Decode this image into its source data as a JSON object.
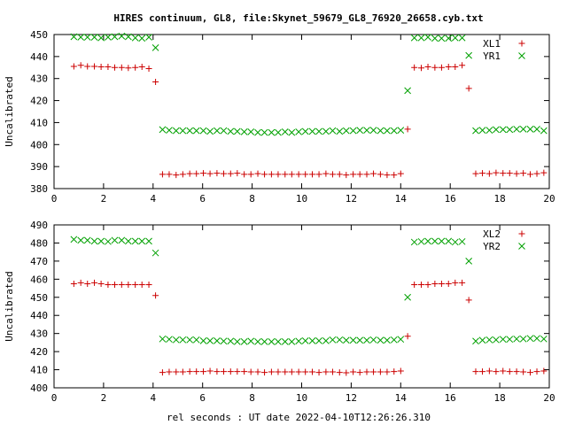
{
  "title": "HIRES continuum, GL8, file:Skynet_59679_GL8_76920_26658.cyb.txt",
  "xlabel": "rel seconds : UT date 2022-04-10T12:26:26.310",
  "colors": {
    "series_a": "#cc0000",
    "series_b": "#00a000",
    "frame": "#000000"
  },
  "chart_data": [
    {
      "type": "scatter",
      "ylabel": "Uncalibrated",
      "xlim": [
        0,
        20
      ],
      "ylim": [
        380,
        450
      ],
      "xticks": [
        0,
        2,
        4,
        6,
        8,
        10,
        12,
        14,
        16,
        18,
        20
      ],
      "yticks": [
        380,
        390,
        400,
        410,
        420,
        430,
        440,
        450
      ],
      "legend_position": "top-right",
      "grid": false,
      "series": [
        {
          "name": "XL1",
          "marker": "plus",
          "x": [
            0.8,
            1.08,
            1.35,
            1.63,
            1.9,
            2.18,
            2.45,
            2.73,
            3.0,
            3.28,
            3.55,
            3.83,
            4.1,
            4.38,
            4.65,
            4.93,
            5.2,
            5.48,
            5.75,
            6.03,
            6.3,
            6.58,
            6.85,
            7.13,
            7.4,
            7.68,
            7.95,
            8.23,
            8.5,
            8.78,
            9.05,
            9.33,
            9.6,
            9.88,
            10.15,
            10.43,
            10.7,
            10.98,
            11.25,
            11.53,
            11.8,
            12.08,
            12.35,
            12.63,
            12.9,
            13.18,
            13.45,
            13.73,
            14.0,
            14.28,
            14.55,
            14.83,
            15.1,
            15.38,
            15.65,
            15.93,
            16.2,
            16.48,
            16.75,
            17.03,
            17.3,
            17.58,
            17.85,
            18.13,
            18.4,
            18.68,
            18.95,
            19.23,
            19.5,
            19.78
          ],
          "y": [
            435.5,
            436.0,
            435.5,
            435.5,
            435.3,
            435.3,
            435.0,
            435.0,
            434.8,
            435.0,
            435.3,
            434.5,
            428.5,
            386.5,
            386.5,
            386.2,
            386.5,
            386.8,
            386.8,
            387.0,
            386.8,
            387.0,
            386.8,
            386.8,
            387.0,
            386.5,
            386.5,
            386.8,
            386.5,
            386.5,
            386.5,
            386.5,
            386.5,
            386.5,
            386.5,
            386.5,
            386.5,
            386.8,
            386.5,
            386.5,
            386.2,
            386.5,
            386.5,
            386.5,
            386.8,
            386.5,
            386.2,
            386.2,
            386.8,
            407.0,
            435.0,
            434.8,
            435.3,
            435.0,
            435.0,
            435.3,
            435.3,
            436.0,
            425.5,
            386.8,
            387.0,
            386.8,
            387.2,
            387.0,
            387.0,
            386.8,
            387.0,
            386.5,
            386.8,
            387.2
          ]
        },
        {
          "name": "YR1",
          "marker": "cross",
          "x": [
            0.8,
            1.08,
            1.35,
            1.63,
            1.9,
            2.18,
            2.45,
            2.73,
            3.0,
            3.28,
            3.55,
            3.83,
            4.1,
            4.38,
            4.65,
            4.93,
            5.2,
            5.48,
            5.75,
            6.03,
            6.3,
            6.58,
            6.85,
            7.13,
            7.4,
            7.68,
            7.95,
            8.23,
            8.5,
            8.78,
            9.05,
            9.33,
            9.6,
            9.88,
            10.15,
            10.43,
            10.7,
            10.98,
            11.25,
            11.53,
            11.8,
            12.08,
            12.35,
            12.63,
            12.9,
            13.18,
            13.45,
            13.73,
            14.0,
            14.28,
            14.55,
            14.83,
            15.1,
            15.38,
            15.65,
            15.93,
            16.2,
            16.48,
            16.75,
            17.03,
            17.3,
            17.58,
            17.85,
            18.13,
            18.4,
            18.68,
            18.95,
            19.23,
            19.5,
            19.78
          ],
          "y": [
            449.0,
            448.8,
            448.8,
            448.8,
            448.5,
            448.8,
            449.0,
            449.3,
            449.0,
            448.5,
            448.3,
            448.8,
            444.0,
            406.8,
            406.5,
            406.3,
            406.3,
            406.3,
            406.3,
            406.3,
            406.0,
            406.3,
            406.3,
            406.0,
            406.0,
            405.8,
            405.8,
            405.5,
            405.5,
            405.5,
            405.5,
            405.8,
            405.5,
            405.8,
            406.0,
            406.0,
            406.0,
            406.0,
            406.3,
            406.0,
            406.3,
            406.3,
            406.5,
            406.5,
            406.5,
            406.3,
            406.3,
            406.3,
            406.5,
            424.5,
            448.5,
            448.5,
            448.8,
            448.3,
            448.3,
            448.3,
            448.5,
            448.5,
            440.5,
            406.3,
            406.5,
            406.5,
            406.8,
            406.8,
            406.8,
            407.0,
            407.0,
            407.0,
            407.0,
            406.3
          ]
        }
      ]
    },
    {
      "type": "scatter",
      "ylabel": "Uncalibrated",
      "xlim": [
        0,
        20
      ],
      "ylim": [
        400,
        490
      ],
      "xticks": [
        0,
        2,
        4,
        6,
        8,
        10,
        12,
        14,
        16,
        18,
        20
      ],
      "yticks": [
        400,
        410,
        420,
        430,
        440,
        450,
        460,
        470,
        480,
        490
      ],
      "legend_position": "top-right",
      "grid": false,
      "series": [
        {
          "name": "XL2",
          "marker": "plus",
          "x": [
            0.8,
            1.08,
            1.35,
            1.63,
            1.9,
            2.18,
            2.45,
            2.73,
            3.0,
            3.28,
            3.55,
            3.83,
            4.1,
            4.38,
            4.65,
            4.93,
            5.2,
            5.48,
            5.75,
            6.03,
            6.3,
            6.58,
            6.85,
            7.13,
            7.4,
            7.68,
            7.95,
            8.23,
            8.5,
            8.78,
            9.05,
            9.33,
            9.6,
            9.88,
            10.15,
            10.43,
            10.7,
            10.98,
            11.25,
            11.53,
            11.8,
            12.08,
            12.35,
            12.63,
            12.9,
            13.18,
            13.45,
            13.73,
            14.0,
            14.28,
            14.55,
            14.83,
            15.1,
            15.38,
            15.65,
            15.93,
            16.2,
            16.48,
            16.75,
            17.03,
            17.3,
            17.58,
            17.85,
            18.13,
            18.4,
            18.68,
            18.95,
            19.23,
            19.5,
            19.78
          ],
          "y": [
            457.5,
            458.0,
            457.5,
            458.0,
            457.5,
            457.0,
            457.0,
            457.0,
            457.0,
            457.0,
            457.0,
            457.0,
            451.0,
            408.5,
            408.8,
            408.8,
            408.8,
            409.0,
            409.0,
            409.0,
            409.3,
            409.0,
            409.0,
            409.0,
            409.0,
            409.0,
            408.8,
            408.8,
            408.5,
            408.8,
            408.8,
            408.8,
            408.8,
            408.8,
            408.8,
            408.8,
            408.5,
            408.8,
            408.8,
            408.5,
            408.3,
            408.8,
            408.5,
            408.8,
            408.8,
            408.8,
            408.8,
            409.0,
            409.3,
            428.5,
            457.0,
            457.0,
            457.0,
            457.5,
            457.5,
            457.5,
            458.0,
            458.0,
            448.5,
            409.0,
            409.0,
            409.3,
            409.0,
            409.3,
            409.0,
            409.0,
            408.8,
            408.5,
            409.0,
            409.3
          ]
        },
        {
          "name": "YR2",
          "marker": "cross",
          "x": [
            0.8,
            1.08,
            1.35,
            1.63,
            1.9,
            2.18,
            2.45,
            2.73,
            3.0,
            3.28,
            3.55,
            3.83,
            4.1,
            4.38,
            4.65,
            4.93,
            5.2,
            5.48,
            5.75,
            6.03,
            6.3,
            6.58,
            6.85,
            7.13,
            7.4,
            7.68,
            7.95,
            8.23,
            8.5,
            8.78,
            9.05,
            9.33,
            9.6,
            9.88,
            10.15,
            10.43,
            10.7,
            10.98,
            11.25,
            11.53,
            11.8,
            12.08,
            12.35,
            12.63,
            12.9,
            13.18,
            13.45,
            13.73,
            14.0,
            14.28,
            14.55,
            14.83,
            15.1,
            15.38,
            15.65,
            15.93,
            16.2,
            16.48,
            16.75,
            17.03,
            17.3,
            17.58,
            17.85,
            18.13,
            18.4,
            18.68,
            18.95,
            19.23,
            19.5,
            19.78
          ],
          "y": [
            482.0,
            481.5,
            481.5,
            481.0,
            481.0,
            480.8,
            481.5,
            481.5,
            481.0,
            481.0,
            481.0,
            481.0,
            474.5,
            427.0,
            426.8,
            426.5,
            426.5,
            426.5,
            426.5,
            426.0,
            426.0,
            426.0,
            425.8,
            425.8,
            425.5,
            425.5,
            425.8,
            425.5,
            425.5,
            425.5,
            425.5,
            425.5,
            425.5,
            425.8,
            426.0,
            426.0,
            426.0,
            426.0,
            426.5,
            426.5,
            426.3,
            426.3,
            426.3,
            426.3,
            426.5,
            426.3,
            426.3,
            426.5,
            426.8,
            450.0,
            480.5,
            480.8,
            481.0,
            481.0,
            481.0,
            481.0,
            480.5,
            480.8,
            470.0,
            425.8,
            426.3,
            426.5,
            426.5,
            426.8,
            426.8,
            427.0,
            427.0,
            427.3,
            427.3,
            427.0
          ]
        }
      ]
    }
  ]
}
